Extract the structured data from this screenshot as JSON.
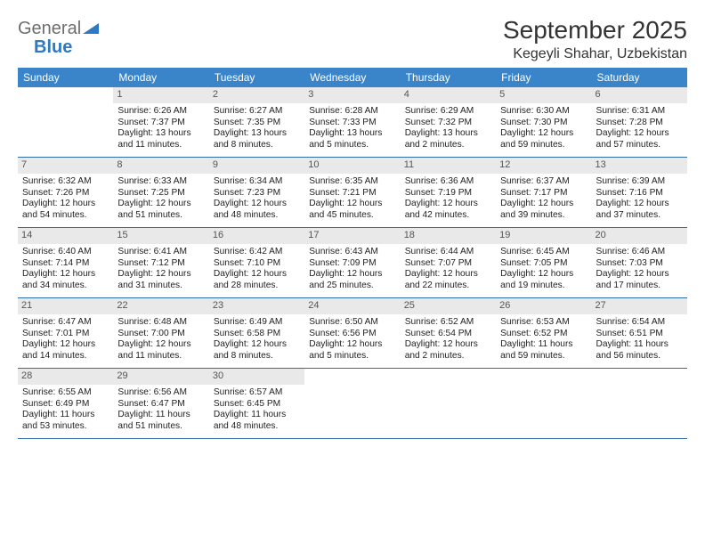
{
  "logo": {
    "word1": "General",
    "word2": "Blue"
  },
  "title": "September 2025",
  "location": "Kegeyli Shahar, Uzbekistan",
  "colors": {
    "header_bg": "#3a84c9",
    "header_text": "#ffffff",
    "daynum_bg": "#e9e9e9",
    "divider": "#2f6ca8",
    "logo_gray": "#6e6e6e",
    "logo_blue": "#2f79c2"
  },
  "dow": [
    "Sunday",
    "Monday",
    "Tuesday",
    "Wednesday",
    "Thursday",
    "Friday",
    "Saturday"
  ],
  "weeks": [
    [
      null,
      {
        "n": "1",
        "sr": "Sunrise: 6:26 AM",
        "ss": "Sunset: 7:37 PM",
        "dl": "Daylight: 13 hours and 11 minutes."
      },
      {
        "n": "2",
        "sr": "Sunrise: 6:27 AM",
        "ss": "Sunset: 7:35 PM",
        "dl": "Daylight: 13 hours and 8 minutes."
      },
      {
        "n": "3",
        "sr": "Sunrise: 6:28 AM",
        "ss": "Sunset: 7:33 PM",
        "dl": "Daylight: 13 hours and 5 minutes."
      },
      {
        "n": "4",
        "sr": "Sunrise: 6:29 AM",
        "ss": "Sunset: 7:32 PM",
        "dl": "Daylight: 13 hours and 2 minutes."
      },
      {
        "n": "5",
        "sr": "Sunrise: 6:30 AM",
        "ss": "Sunset: 7:30 PM",
        "dl": "Daylight: 12 hours and 59 minutes."
      },
      {
        "n": "6",
        "sr": "Sunrise: 6:31 AM",
        "ss": "Sunset: 7:28 PM",
        "dl": "Daylight: 12 hours and 57 minutes."
      }
    ],
    [
      {
        "n": "7",
        "sr": "Sunrise: 6:32 AM",
        "ss": "Sunset: 7:26 PM",
        "dl": "Daylight: 12 hours and 54 minutes."
      },
      {
        "n": "8",
        "sr": "Sunrise: 6:33 AM",
        "ss": "Sunset: 7:25 PM",
        "dl": "Daylight: 12 hours and 51 minutes."
      },
      {
        "n": "9",
        "sr": "Sunrise: 6:34 AM",
        "ss": "Sunset: 7:23 PM",
        "dl": "Daylight: 12 hours and 48 minutes."
      },
      {
        "n": "10",
        "sr": "Sunrise: 6:35 AM",
        "ss": "Sunset: 7:21 PM",
        "dl": "Daylight: 12 hours and 45 minutes."
      },
      {
        "n": "11",
        "sr": "Sunrise: 6:36 AM",
        "ss": "Sunset: 7:19 PM",
        "dl": "Daylight: 12 hours and 42 minutes."
      },
      {
        "n": "12",
        "sr": "Sunrise: 6:37 AM",
        "ss": "Sunset: 7:17 PM",
        "dl": "Daylight: 12 hours and 39 minutes."
      },
      {
        "n": "13",
        "sr": "Sunrise: 6:39 AM",
        "ss": "Sunset: 7:16 PM",
        "dl": "Daylight: 12 hours and 37 minutes."
      }
    ],
    [
      {
        "n": "14",
        "sr": "Sunrise: 6:40 AM",
        "ss": "Sunset: 7:14 PM",
        "dl": "Daylight: 12 hours and 34 minutes."
      },
      {
        "n": "15",
        "sr": "Sunrise: 6:41 AM",
        "ss": "Sunset: 7:12 PM",
        "dl": "Daylight: 12 hours and 31 minutes."
      },
      {
        "n": "16",
        "sr": "Sunrise: 6:42 AM",
        "ss": "Sunset: 7:10 PM",
        "dl": "Daylight: 12 hours and 28 minutes."
      },
      {
        "n": "17",
        "sr": "Sunrise: 6:43 AM",
        "ss": "Sunset: 7:09 PM",
        "dl": "Daylight: 12 hours and 25 minutes."
      },
      {
        "n": "18",
        "sr": "Sunrise: 6:44 AM",
        "ss": "Sunset: 7:07 PM",
        "dl": "Daylight: 12 hours and 22 minutes."
      },
      {
        "n": "19",
        "sr": "Sunrise: 6:45 AM",
        "ss": "Sunset: 7:05 PM",
        "dl": "Daylight: 12 hours and 19 minutes."
      },
      {
        "n": "20",
        "sr": "Sunrise: 6:46 AM",
        "ss": "Sunset: 7:03 PM",
        "dl": "Daylight: 12 hours and 17 minutes."
      }
    ],
    [
      {
        "n": "21",
        "sr": "Sunrise: 6:47 AM",
        "ss": "Sunset: 7:01 PM",
        "dl": "Daylight: 12 hours and 14 minutes."
      },
      {
        "n": "22",
        "sr": "Sunrise: 6:48 AM",
        "ss": "Sunset: 7:00 PM",
        "dl": "Daylight: 12 hours and 11 minutes."
      },
      {
        "n": "23",
        "sr": "Sunrise: 6:49 AM",
        "ss": "Sunset: 6:58 PM",
        "dl": "Daylight: 12 hours and 8 minutes."
      },
      {
        "n": "24",
        "sr": "Sunrise: 6:50 AM",
        "ss": "Sunset: 6:56 PM",
        "dl": "Daylight: 12 hours and 5 minutes."
      },
      {
        "n": "25",
        "sr": "Sunrise: 6:52 AM",
        "ss": "Sunset: 6:54 PM",
        "dl": "Daylight: 12 hours and 2 minutes."
      },
      {
        "n": "26",
        "sr": "Sunrise: 6:53 AM",
        "ss": "Sunset: 6:52 PM",
        "dl": "Daylight: 11 hours and 59 minutes."
      },
      {
        "n": "27",
        "sr": "Sunrise: 6:54 AM",
        "ss": "Sunset: 6:51 PM",
        "dl": "Daylight: 11 hours and 56 minutes."
      }
    ],
    [
      {
        "n": "28",
        "sr": "Sunrise: 6:55 AM",
        "ss": "Sunset: 6:49 PM",
        "dl": "Daylight: 11 hours and 53 minutes."
      },
      {
        "n": "29",
        "sr": "Sunrise: 6:56 AM",
        "ss": "Sunset: 6:47 PM",
        "dl": "Daylight: 11 hours and 51 minutes."
      },
      {
        "n": "30",
        "sr": "Sunrise: 6:57 AM",
        "ss": "Sunset: 6:45 PM",
        "dl": "Daylight: 11 hours and 48 minutes."
      },
      null,
      null,
      null,
      null
    ]
  ]
}
